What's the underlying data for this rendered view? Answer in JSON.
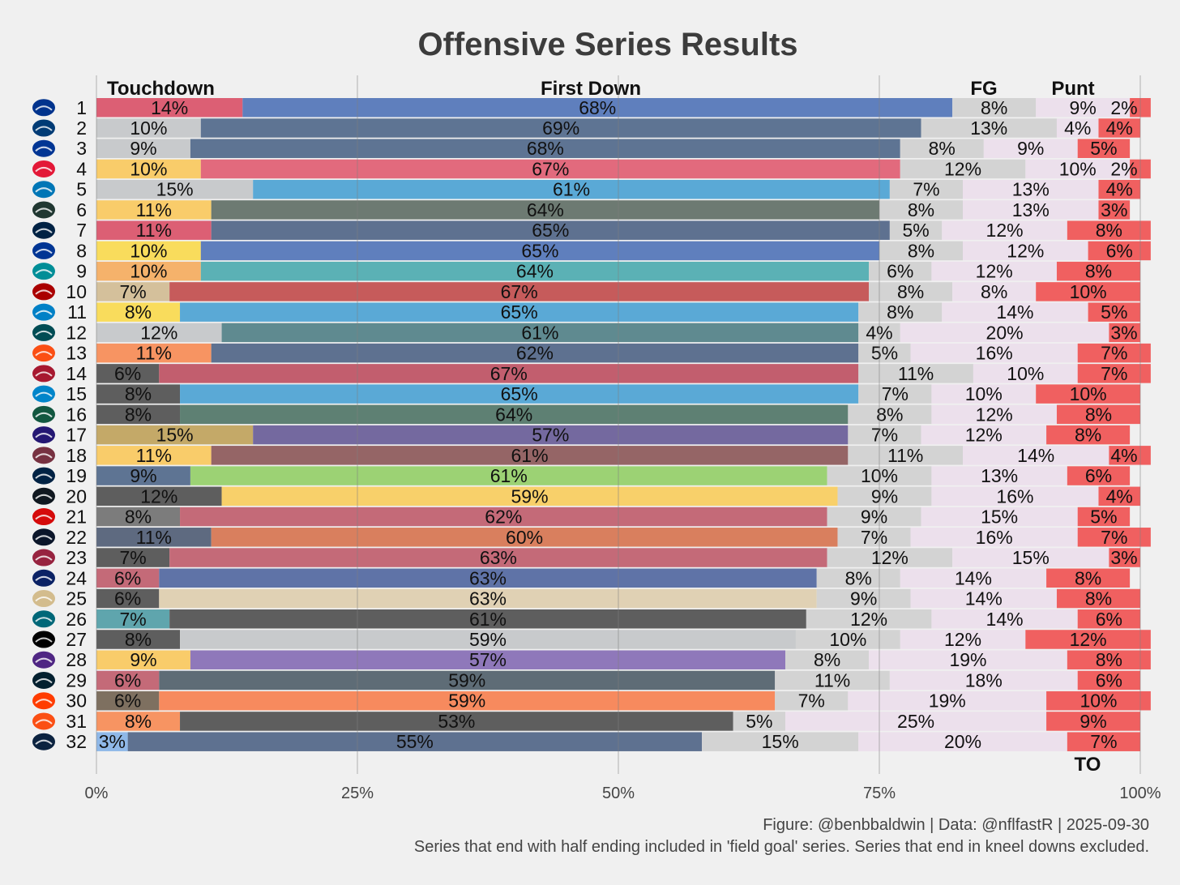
{
  "chart_data": {
    "type": "bar",
    "orientation": "horizontal-stacked-100",
    "title": "Offensive Series Results",
    "segment_labels": [
      "Touchdown",
      "First Down",
      "FG",
      "Punt",
      "TO"
    ],
    "x_ticks": [
      "0%",
      "25%",
      "50%",
      "75%",
      "100%"
    ],
    "xlim": [
      0,
      100
    ],
    "caption_line1": "Figure: @benbbaldwin | Data: @nflfastR | 2025-09-30",
    "caption_line2": "Series that end with half ending included in 'field goal' series. Series that end in kneel downs excluded.",
    "segment_colors": {
      "fg": "#d3d3d3",
      "punt": "#ece0ec",
      "to": "#f06060"
    },
    "rows": [
      {
        "rank": "1",
        "team": "BUF",
        "logo_color": "#00338d",
        "td_color": "#dc5f74",
        "fd_color": "#5f7fbd",
        "values": [
          14,
          68,
          8,
          9,
          2
        ],
        "labels": [
          "14%",
          "68%",
          "8%",
          "9%",
          "2%"
        ]
      },
      {
        "rank": "2",
        "team": "IND",
        "logo_color": "#003b75",
        "td_color": "#c8cacc",
        "fd_color": "#5e7493",
        "values": [
          10,
          69,
          13,
          4,
          4
        ],
        "labels": [
          "10%",
          "69%",
          "13%",
          "4%",
          "4%"
        ]
      },
      {
        "rank": "3",
        "team": "DAL",
        "logo_color": "#003594",
        "td_color": "#c8cacc",
        "fd_color": "#5e7493",
        "values": [
          9,
          68,
          8,
          9,
          5
        ],
        "labels": [
          "9%",
          "68%",
          "8%",
          "9%",
          "5%"
        ]
      },
      {
        "rank": "4",
        "team": "KC",
        "logo_color": "#e31837",
        "td_color": "#f9cc6a",
        "fd_color": "#e26a7d",
        "values": [
          10,
          67,
          12,
          10,
          2
        ],
        "labels": [
          "10%",
          "67%",
          "12%",
          "10%",
          "2%"
        ]
      },
      {
        "rank": "5",
        "team": "DET",
        "logo_color": "#0076b6",
        "td_color": "#c8cacc",
        "fd_color": "#5aa9d6",
        "values": [
          15,
          61,
          7,
          13,
          4
        ],
        "labels": [
          "15%",
          "61%",
          "7%",
          "13%",
          "4%"
        ]
      },
      {
        "rank": "6",
        "team": "GB",
        "logo_color": "#203731",
        "td_color": "#f9cc6a",
        "fd_color": "#6d7a72",
        "values": [
          11,
          64,
          8,
          13,
          3
        ],
        "labels": [
          "11%",
          "64%",
          "8%",
          "13%",
          "3%"
        ]
      },
      {
        "rank": "7",
        "team": "NE",
        "logo_color": "#002244",
        "td_color": "#dc5f74",
        "fd_color": "#5e7190",
        "values": [
          11,
          65,
          5,
          12,
          8
        ],
        "labels": [
          "11%",
          "65%",
          "5%",
          "12%",
          "8%"
        ]
      },
      {
        "rank": "8",
        "team": "LA",
        "logo_color": "#003594",
        "td_color": "#f9dc5c",
        "fd_color": "#5f7fbd",
        "values": [
          10,
          65,
          8,
          12,
          6
        ],
        "labels": [
          "10%",
          "65%",
          "8%",
          "12%",
          "6%"
        ]
      },
      {
        "rank": "9",
        "team": "MIA",
        "logo_color": "#008e97",
        "td_color": "#f5b26b",
        "fd_color": "#5bb1b5",
        "values": [
          10,
          64,
          6,
          12,
          8
        ],
        "labels": [
          "10%",
          "64%",
          "6%",
          "12%",
          "8%"
        ]
      },
      {
        "rank": "10",
        "team": "SF",
        "logo_color": "#aa0000",
        "td_color": "#d4c09b",
        "fd_color": "#c65b5b",
        "values": [
          7,
          67,
          8,
          8,
          10
        ],
        "labels": [
          "7%",
          "67%",
          "8%",
          "8%",
          "10%"
        ]
      },
      {
        "rank": "11",
        "team": "LAC",
        "logo_color": "#0080c6",
        "td_color": "#f9dc5c",
        "fd_color": "#5aa9d6",
        "values": [
          8,
          65,
          8,
          14,
          5
        ],
        "labels": [
          "8%",
          "65%",
          "8%",
          "14%",
          "5%"
        ]
      },
      {
        "rank": "12",
        "team": "PHI",
        "logo_color": "#004c54",
        "td_color": "#c8cacc",
        "fd_color": "#5f8a90",
        "values": [
          12,
          61,
          4,
          20,
          3
        ],
        "labels": [
          "12%",
          "61%",
          "4%",
          "20%",
          "3%"
        ]
      },
      {
        "rank": "13",
        "team": "DEN",
        "logo_color": "#fb4f14",
        "td_color": "#f79462",
        "fd_color": "#5e7190",
        "values": [
          11,
          62,
          5,
          16,
          7
        ],
        "labels": [
          "11%",
          "62%",
          "5%",
          "16%",
          "7%"
        ]
      },
      {
        "rank": "14",
        "team": "ATL",
        "logo_color": "#a71930",
        "td_color": "#5e5e5e",
        "fd_color": "#c25e6e",
        "values": [
          6,
          67,
          11,
          10,
          7
        ],
        "labels": [
          "6%",
          "67%",
          "11%",
          "10%",
          "7%"
        ]
      },
      {
        "rank": "15",
        "team": "CAR",
        "logo_color": "#0085ca",
        "td_color": "#5e5e5e",
        "fd_color": "#5aa9d6",
        "values": [
          8,
          65,
          7,
          10,
          10
        ],
        "labels": [
          "8%",
          "65%",
          "7%",
          "10%",
          "10%"
        ]
      },
      {
        "rank": "16",
        "team": "NYJ",
        "logo_color": "#125740",
        "td_color": "#5e5e5e",
        "fd_color": "#5e8073",
        "values": [
          8,
          64,
          8,
          12,
          8
        ],
        "labels": [
          "8%",
          "64%",
          "8%",
          "12%",
          "8%"
        ]
      },
      {
        "rank": "17",
        "team": "BAL",
        "logo_color": "#241773",
        "td_color": "#c4a968",
        "fd_color": "#74699f",
        "values": [
          15,
          57,
          7,
          12,
          8
        ],
        "labels": [
          "15%",
          "57%",
          "7%",
          "12%",
          "8%"
        ]
      },
      {
        "rank": "18",
        "team": "WAS",
        "logo_color": "#773141",
        "td_color": "#f9cc6a",
        "fd_color": "#956566",
        "values": [
          11,
          61,
          11,
          14,
          4
        ],
        "labels": [
          "11%",
          "61%",
          "11%",
          "14%",
          "4%"
        ]
      },
      {
        "rank": "19",
        "team": "SEA",
        "logo_color": "#002244",
        "td_color": "#5e7493",
        "fd_color": "#9cd274",
        "values": [
          9,
          61,
          10,
          13,
          6
        ],
        "labels": [
          "9%",
          "61%",
          "10%",
          "13%",
          "6%"
        ]
      },
      {
        "rank": "20",
        "team": "PIT",
        "logo_color": "#101820",
        "td_color": "#5e5e5e",
        "fd_color": "#f8d06a",
        "values": [
          12,
          59,
          9,
          16,
          4
        ],
        "labels": [
          "12%",
          "59%",
          "9%",
          "16%",
          "4%"
        ]
      },
      {
        "rank": "21",
        "team": "TB",
        "logo_color": "#d50a0a",
        "td_color": "#7c7c7c",
        "fd_color": "#c46a78",
        "values": [
          8,
          62,
          9,
          15,
          5
        ],
        "labels": [
          "8%",
          "62%",
          "9%",
          "15%",
          "5%"
        ]
      },
      {
        "rank": "22",
        "team": "CHI",
        "logo_color": "#0b162a",
        "td_color": "#5e6a80",
        "fd_color": "#d97f5e",
        "values": [
          11,
          60,
          7,
          16,
          7
        ],
        "labels": [
          "11%",
          "60%",
          "7%",
          "16%",
          "7%"
        ]
      },
      {
        "rank": "23",
        "team": "ARI",
        "logo_color": "#97233f",
        "td_color": "#5e5e5e",
        "fd_color": "#c46a78",
        "values": [
          7,
          63,
          12,
          15,
          3
        ],
        "labels": [
          "7%",
          "63%",
          "12%",
          "15%",
          "3%"
        ]
      },
      {
        "rank": "24",
        "team": "NYG",
        "logo_color": "#0b2265",
        "td_color": "#c46a78",
        "fd_color": "#5f73a7",
        "values": [
          6,
          63,
          8,
          14,
          8
        ],
        "labels": [
          "6%",
          "63%",
          "8%",
          "14%",
          "8%"
        ]
      },
      {
        "rank": "25",
        "team": "NO",
        "logo_color": "#d3bc8d",
        "td_color": "#5e5e5e",
        "fd_color": "#e0d1b4",
        "values": [
          6,
          63,
          9,
          14,
          8
        ],
        "labels": [
          "6%",
          "63%",
          "9%",
          "14%",
          "8%"
        ]
      },
      {
        "rank": "26",
        "team": "JAX",
        "logo_color": "#006778",
        "td_color": "#5fa5ad",
        "fd_color": "#5e5e5e",
        "values": [
          7,
          61,
          12,
          14,
          6
        ],
        "labels": [
          "7%",
          "61%",
          "12%",
          "14%",
          "6%"
        ]
      },
      {
        "rank": "27",
        "team": "LV",
        "logo_color": "#000000",
        "td_color": "#5e5e5e",
        "fd_color": "#c8cacc",
        "values": [
          8,
          59,
          10,
          12,
          12
        ],
        "labels": [
          "8%",
          "59%",
          "10%",
          "12%",
          "12%"
        ]
      },
      {
        "rank": "28",
        "team": "MIN",
        "logo_color": "#4f2683",
        "td_color": "#f9cc6a",
        "fd_color": "#8f78ba",
        "values": [
          9,
          57,
          8,
          19,
          8
        ],
        "labels": [
          "9%",
          "57%",
          "8%",
          "19%",
          "8%"
        ]
      },
      {
        "rank": "29",
        "team": "HOU",
        "logo_color": "#03202f",
        "td_color": "#c46a78",
        "fd_color": "#5e6c76",
        "values": [
          6,
          59,
          11,
          18,
          6
        ],
        "labels": [
          "6%",
          "59%",
          "11%",
          "18%",
          "6%"
        ]
      },
      {
        "rank": "30",
        "team": "CLE",
        "logo_color": "#ff3c00",
        "td_color": "#7e7060",
        "fd_color": "#f78a5e",
        "values": [
          6,
          59,
          7,
          19,
          10
        ],
        "labels": [
          "6%",
          "59%",
          "7%",
          "19%",
          "10%"
        ]
      },
      {
        "rank": "31",
        "team": "CIN",
        "logo_color": "#fb4f14",
        "td_color": "#f79462",
        "fd_color": "#5e5e5e",
        "values": [
          8,
          53,
          5,
          25,
          9
        ],
        "labels": [
          "8%",
          "53%",
          "5%",
          "25%",
          "9%"
        ]
      },
      {
        "rank": "32",
        "team": "TEN",
        "logo_color": "#0c2340",
        "td_color": "#8fb8e8",
        "fd_color": "#5e7190",
        "values": [
          3,
          55,
          15,
          20,
          7
        ],
        "labels": [
          "3%",
          "55%",
          "15%",
          "20%",
          "7%"
        ]
      }
    ]
  }
}
